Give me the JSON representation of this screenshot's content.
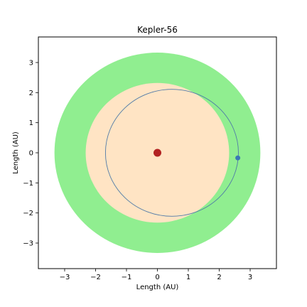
{
  "chart_data": {
    "type": "scatter",
    "title": "Kepler-56",
    "xlabel": "Length (AU)",
    "ylabel": "Length (AU)",
    "xlim": [
      -3.85,
      3.85
    ],
    "ylim": [
      -3.85,
      3.85
    ],
    "xticks": [
      -3,
      -2,
      -1,
      0,
      1,
      2,
      3
    ],
    "yticks": [
      -3,
      -2,
      -1,
      0,
      1,
      2,
      3
    ],
    "xtick_labels": [
      "−3",
      "−2",
      "−1",
      "0",
      "1",
      "2",
      "3"
    ],
    "ytick_labels": [
      "−3",
      "−2",
      "−1",
      "0",
      "1",
      "2",
      "3"
    ],
    "grid": false,
    "zones": [
      {
        "kind": "outer",
        "center": [
          0,
          0
        ],
        "radius": 3.33,
        "color": "#90EE90"
      },
      {
        "kind": "inner",
        "center": [
          0,
          0
        ],
        "radius": 2.32,
        "color": "#FFE4C4"
      }
    ],
    "star": {
      "center": [
        0,
        0
      ],
      "color": "#B22222"
    },
    "orbit": {
      "center": [
        0.47,
        0
      ],
      "rx": 2.15,
      "ry": 2.11,
      "color": "#4F7AA8"
    },
    "planet": {
      "position": [
        2.6,
        -0.17
      ],
      "color": "#3A78B5"
    }
  }
}
